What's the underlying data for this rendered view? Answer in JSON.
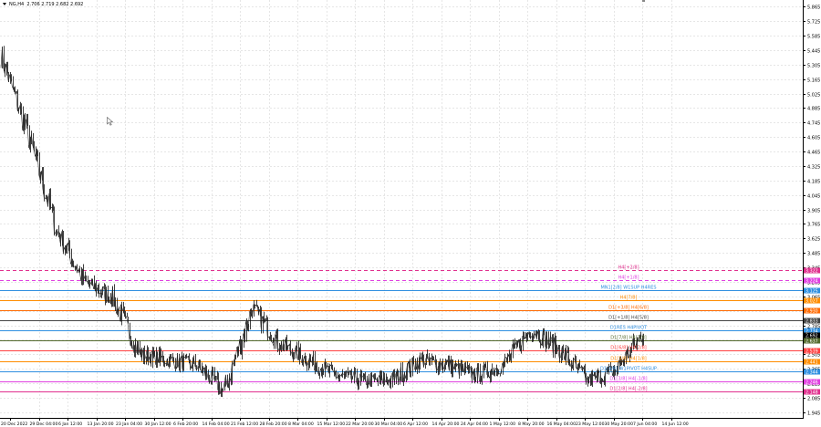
{
  "header": {
    "symbol": "NG,H4",
    "ohlc": "2.706 2.719 2.682 2.692"
  },
  "price_axis": {
    "labels": [
      "5.865",
      "5.725",
      "5.585",
      "5.445",
      "5.305",
      "5.165",
      "5.025",
      "4.885",
      "4.745",
      "4.605",
      "4.465",
      "4.325",
      "4.185",
      "4.045",
      "3.905",
      "3.765",
      "3.625",
      "3.485",
      "3.345",
      "3.205",
      "3.065",
      "2.925",
      "2.785",
      "2.645",
      "2.505",
      "2.365",
      "2.225",
      "2.085",
      "1.945"
    ],
    "min": 1.89,
    "max": 5.93
  },
  "time_axis": {
    "labels": [
      "20 Dec 2022",
      "29 Dec 04:00",
      "6 Jan 12:00",
      "13 Jan 20:00",
      "23 Jan 04:00",
      "30 Jan 12:00",
      "6 Feb 20:00",
      "14 Feb 04:00",
      "21 Feb 12:00",
      "28 Feb 20:00",
      "8 Mar 04:00",
      "15 Mar 12:00",
      "22 Mar 20:00",
      "30 Mar 04:00",
      "6 Apr 12:00",
      "14 Apr 20:00",
      "24 Apr 04:00",
      "1 May 12:00",
      "8 May 20:00",
      "16 May 04:00",
      "23 May 12:00",
      "30 May 20:00",
      "7 Jun 04:00",
      "14 Jun 12:00"
    ]
  },
  "levels": [
    {
      "name": "H4[+2/8]",
      "price": 3.322,
      "color": "#e0308e",
      "style": "dashed",
      "tag": "3.322"
    },
    {
      "name": "H4[+1/8]",
      "price": 3.224,
      "color": "#e040e0",
      "style": "dashed",
      "tag": "3.224"
    },
    {
      "name": "MN1[2/8] W1SUP H4RES",
      "price": 3.125,
      "color": "#2f8fe0",
      "style": "solid",
      "tag": "3.125"
    },
    {
      "name": "H4[7/8]",
      "price": 3.027,
      "color": "#ff8c00",
      "style": "solid",
      "tag": "3.027"
    },
    {
      "name": "D1[+3/8] H4[6/8]",
      "price": 2.93,
      "color": "#ff6a00",
      "style": "solid",
      "tag": "2.930"
    },
    {
      "name": "D1[+1/8] H4[5/8]",
      "price": 2.833,
      "color": "#444444",
      "style": "solid",
      "tag": "2.833"
    },
    {
      "name": "D1RES H4PIVOT",
      "price": 2.734,
      "color": "#2f8fe0",
      "style": "solid",
      "tag": "2.734"
    },
    {
      "name": "D1[7/8] H4[3/8]",
      "price": 2.637,
      "color": "#556b2f",
      "style": "solid",
      "tag": "2.637"
    },
    {
      "name": "D1[6/8] H4[2/8]",
      "price": 2.539,
      "color": "#ff4040",
      "style": "solid",
      "tag": "2.539"
    },
    {
      "name": "D1[5/8] H4[1/8]",
      "price": 2.441,
      "color": "#ff8c00",
      "style": "solid",
      "tag": "2.441"
    },
    {
      "name": "D1[4/8] W1PIVOT H4SUP",
      "price": 2.344,
      "color": "#2f8fe0",
      "style": "solid",
      "tag": "2.344"
    },
    {
      "name": "D1[3/8] H4[-1/8]",
      "price": 2.246,
      "color": "#e040e0",
      "style": "solid",
      "tag": "2.246"
    },
    {
      "name": "D1[2/8] H4[-2/8]",
      "price": 2.148,
      "color": "#e0308e",
      "style": "solid",
      "tag": "2.148"
    }
  ],
  "current_price": {
    "price": 2.692,
    "tag": "2.692",
    "color": "#000000"
  },
  "chart_data": {
    "type": "line",
    "title": "",
    "x": [
      "20 Dec 2022",
      "29 Dec 04:00",
      "6 Jan 12:00",
      "13 Jan 20:00",
      "23 Jan 04:00",
      "30 Jan 12:00",
      "6 Feb 20:00",
      "14 Feb 04:00",
      "21 Feb 12:00",
      "28 Feb 20:00",
      "8 Mar 04:00",
      "15 Mar 12:00",
      "22 Mar 20:00",
      "30 Mar 04:00",
      "6 Apr 12:00",
      "14 Apr 20:00",
      "24 Apr 04:00",
      "1 May 12:00",
      "8 May 20:00",
      "16 May 04:00",
      "23 May 12:00",
      "30 May 20:00",
      "7 Jun 04:00",
      "14 Jun 12:00"
    ],
    "series": [
      {
        "values": [
          5.4,
          4.6,
          3.7,
          3.2,
          3.05,
          2.5,
          2.45,
          2.4,
          2.15,
          2.95,
          2.6,
          2.45,
          2.3,
          2.25,
          2.25,
          2.45,
          2.4,
          2.3,
          2.4,
          2.75,
          2.55,
          2.25,
          2.35,
          2.7
        ]
      }
    ],
    "ylim": [
      1.89,
      5.93
    ],
    "grid": true
  }
}
